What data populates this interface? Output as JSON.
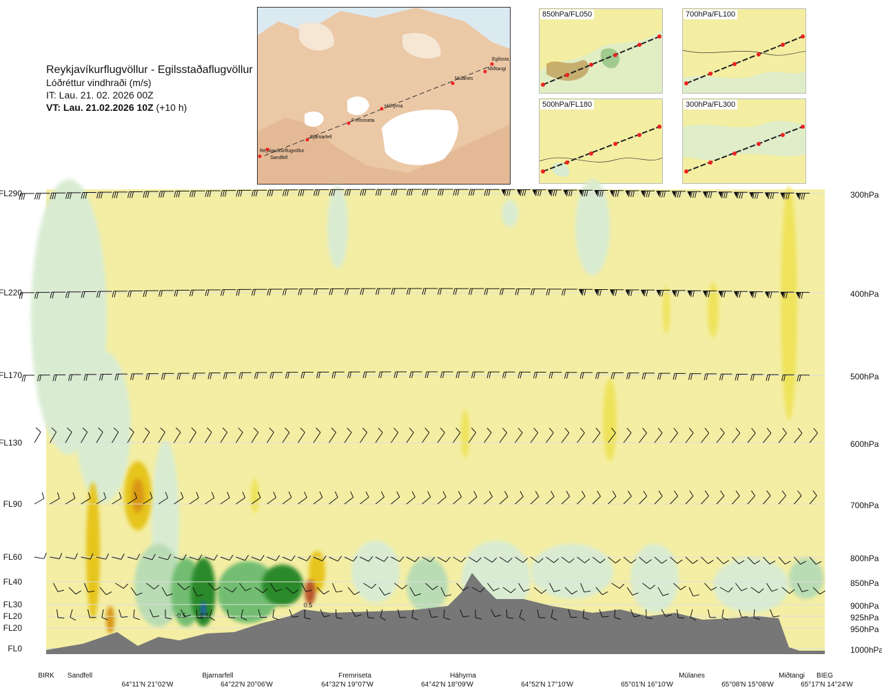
{
  "header": {
    "route": "Reykjavíkurflugvöllur - Egilsstaðaflugvöllur",
    "variable": "Lóðréttur vindhraði (m/s)",
    "issue_time": "IT: Lau. 21. 02. 2026 00Z",
    "valid_time_bold": "VT: Lau. 21.02.2026 10Z",
    "valid_time_lead": "(+10 h)"
  },
  "map": {
    "places": [
      "Reykjavíkurflugvöllur",
      "Sandfell",
      "Bjarnarfell",
      "Fremriseta",
      "Háhyrna",
      "Múlanes",
      "Miðtangi",
      "Egilssta"
    ]
  },
  "panels": [
    {
      "label": "850hPa/FL050"
    },
    {
      "label": "700hPa/FL100"
    },
    {
      "label": "500hPa/FL180"
    },
    {
      "label": "300hPa/FL300"
    }
  ],
  "chart_data": {
    "type": "heatmap",
    "title": "Lóðréttur vindhraði (m/s)",
    "levels": [
      {
        "fl": "FL290",
        "hpa": "300hPa"
      },
      {
        "fl": "FL220",
        "hpa": "400hPa"
      },
      {
        "fl": "FL170",
        "hpa": "500hPa"
      },
      {
        "fl": "FL130",
        "hpa": "600hPa"
      },
      {
        "fl": "FL90",
        "hpa": "700hPa"
      },
      {
        "fl": "FL60",
        "hpa": "800hPa"
      },
      {
        "fl": "FL40",
        "hpa": "850hPa"
      },
      {
        "fl": "FL30",
        "hpa": "900hPa"
      },
      {
        "fl": "FL20",
        "hpa": "925hPa"
      },
      {
        "fl": "FL20",
        "hpa": "950hPa"
      },
      {
        "fl": "FL0",
        "hpa": "1000hPa"
      }
    ],
    "locations": [
      "BIRK",
      "Sandfell",
      "Bjarnarfell",
      "Fremriseta",
      "Háhyrna",
      "Múlanes",
      "Miðtangi",
      "BIEG"
    ],
    "coordinates": [
      "64°11'N 21°02'W",
      "64°22'N 20°06'W",
      "64°32'N 19°07'W",
      "64°42'N 18°09'W",
      "64°52'N 17°10'W",
      "65°01'N 16°10'W",
      "65°08'N 15°08'W",
      "65°17'N 14°24'W"
    ],
    "contour_labels": [
      "-0.5",
      "-0.5",
      "0.5"
    ],
    "colors": {
      "neutral": "#f4eea4",
      "weak_down": "#d9ecd2",
      "light_down": "#b9dcb4",
      "mid_down": "#72bd72",
      "strong_down": "#2b8a2b",
      "very_strong_down": "#1e5fa8",
      "weak_up": "#efe35c",
      "mid_up": "#e6c51e",
      "strong_up": "#d89616",
      "very_strong_up": "#b7592a",
      "terrain": "#777777"
    }
  }
}
